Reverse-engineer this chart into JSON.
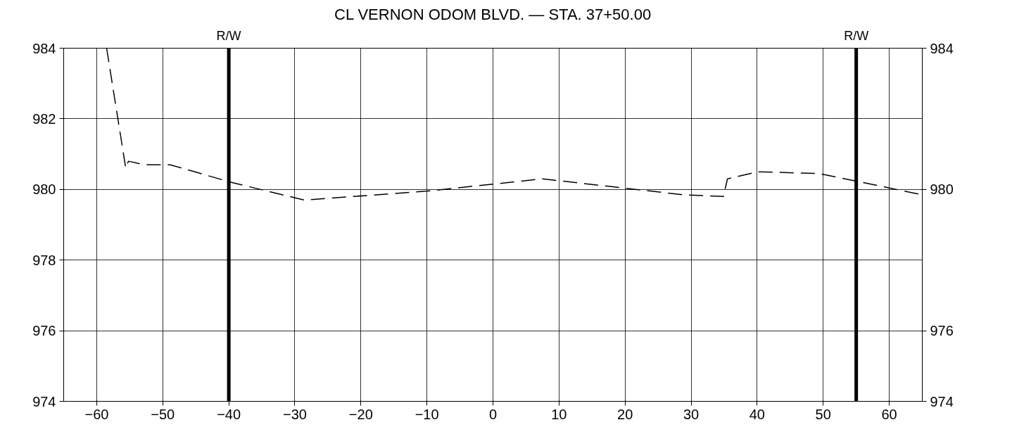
{
  "chart_data": {
    "type": "line",
    "title": "CL VERNON ODOM BLVD. — STA. 37+50.00",
    "series": [
      {
        "color": "#000000",
        "x": [
          -58.5,
          -55.6,
          -55.2,
          -52.8,
          -48.9,
          -39.6,
          -28.6,
          -10.1,
          7.5,
          28.7,
          34.9,
          35.5,
          40.1,
          49.4,
          54.6,
          65
        ],
        "values": [
          984,
          980.6,
          980.8,
          980.7,
          980.7,
          980.2,
          979.7,
          979.95,
          980.3,
          979.85,
          979.8,
          980.3,
          980.5,
          980.45,
          980.25,
          979.85
        ]
      }
    ],
    "xlim": [
      -65,
      65
    ],
    "xticks": [
      -60,
      -50,
      -40,
      -30,
      -20,
      -10,
      0,
      10,
      20,
      30,
      40,
      50,
      60
    ],
    "ylim": [
      974,
      984
    ],
    "yticks": [
      974,
      976,
      978,
      980,
      982,
      984
    ],
    "y2lim": [
      974,
      984
    ],
    "y2ticks": [
      974,
      976,
      980,
      984
    ],
    "ref_lines": [
      {
        "axis": "x",
        "value": -40,
        "label": "R/W",
        "color": "#000000"
      },
      {
        "axis": "x",
        "value": 55,
        "label": "R/W",
        "color": "#000000"
      }
    ],
    "grid": true,
    "line_style": "dashed",
    "marker": "none"
  }
}
